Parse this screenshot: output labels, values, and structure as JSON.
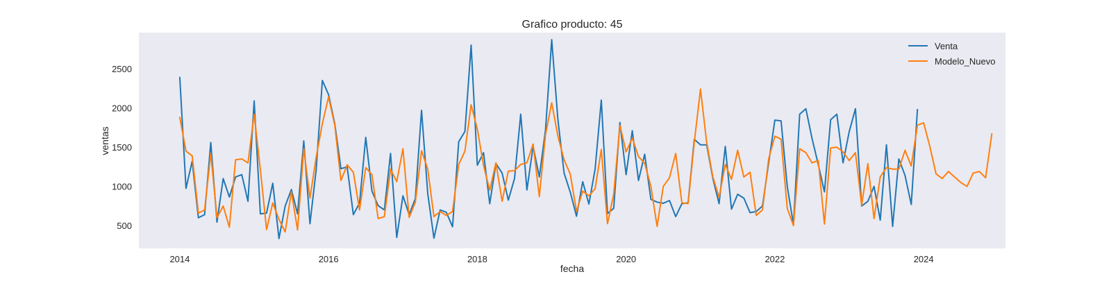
{
  "chart_data": {
    "type": "line",
    "title": "Grafico producto: 45",
    "xlabel": "fecha",
    "ylabel": "ventas",
    "xlim": [
      2013.45,
      2025.1
    ],
    "ylim": [
      210,
      2960
    ],
    "x_ticks": [
      2014,
      2016,
      2018,
      2020,
      2022,
      2024
    ],
    "x_tick_labels": [
      "2014",
      "2016",
      "2018",
      "2020",
      "2022",
      "2024"
    ],
    "y_ticks": [
      500,
      1000,
      1500,
      2000,
      2500
    ],
    "y_tick_labels": [
      "500",
      "1000",
      "1500",
      "2000",
      "2500"
    ],
    "grid": false,
    "legend_position": "top-right",
    "x_start": 2014.0,
    "x_step": 0.0833333,
    "series": [
      {
        "name": "Venta",
        "color": "#1f77b4",
        "values": [
          2390,
          975,
          1320,
          600,
          640,
          1560,
          545,
          1100,
          865,
          1120,
          1150,
          810,
          2090,
          650,
          660,
          1040,
          335,
          750,
          960,
          650,
          1580,
          525,
          1210,
          2350,
          2170,
          1800,
          1225,
          1250,
          640,
          790,
          1625,
          940,
          755,
          700,
          1420,
          350,
          880,
          640,
          845,
          1970,
          910,
          340,
          700,
          670,
          485,
          1570,
          1700,
          2800,
          1270,
          1430,
          780,
          1290,
          1170,
          825,
          1100,
          1920,
          955,
          1510,
          1120,
          1720,
          2870,
          1850,
          1170,
          925,
          620,
          1060,
          775,
          1220,
          2100,
          655,
          720,
          1815,
          1150,
          1710,
          1075,
          1410,
          835,
          800,
          785,
          820,
          615,
          780,
          790,
          1600,
          1530,
          1530,
          1100,
          780,
          1510,
          710,
          900,
          850,
          665,
          680,
          750,
          1300,
          1845,
          1835,
          1000,
          515,
          1920,
          1990,
          1610,
          1280,
          930,
          1850,
          1920,
          1300,
          1700,
          1990,
          750,
          810,
          1000,
          570,
          1530,
          490,
          1350,
          1140,
          770,
          1980
        ],
        "x_start": 2014.0
      },
      {
        "name": "Modelo_Nuevo",
        "color": "#ff7f0e",
        "values": [
          1880,
          1450,
          1390,
          660,
          700,
          1420,
          600,
          750,
          480,
          1340,
          1350,
          1300,
          1920,
          1210,
          450,
          790,
          580,
          420,
          930,
          445,
          1480,
          850,
          1370,
          1800,
          2140,
          1780,
          1075,
          1275,
          1180,
          700,
          1240,
          1150,
          590,
          615,
          1220,
          1060,
          1480,
          605,
          800,
          1455,
          1220,
          615,
          680,
          630,
          680,
          1280,
          1450,
          2040,
          1730,
          1270,
          950,
          1300,
          810,
          1195,
          1200,
          1280,
          1300,
          1540,
          870,
          1660,
          2065,
          1640,
          1340,
          1155,
          680,
          940,
          880,
          970,
          1470,
          525,
          900,
          1780,
          1440,
          1615,
          1380,
          1295,
          1000,
          490,
          1000,
          1110,
          1420,
          790,
          780,
          1560,
          2240,
          1560,
          1120,
          860,
          1280,
          1090,
          1460,
          1120,
          1180,
          630,
          700,
          1350,
          1640,
          1600,
          720,
          500,
          1480,
          1430,
          1300,
          1330,
          520,
          1490,
          1500,
          1440,
          1330,
          1430,
          760,
          1290,
          590,
          1120,
          1240,
          1220,
          1220,
          1460,
          1260,
          1780,
          1810,
          1510,
          1160,
          1100,
          1190,
          1120,
          1050,
          1000,
          1170,
          1190,
          1110,
          1670
        ],
        "x_start": 2014.0
      }
    ]
  }
}
